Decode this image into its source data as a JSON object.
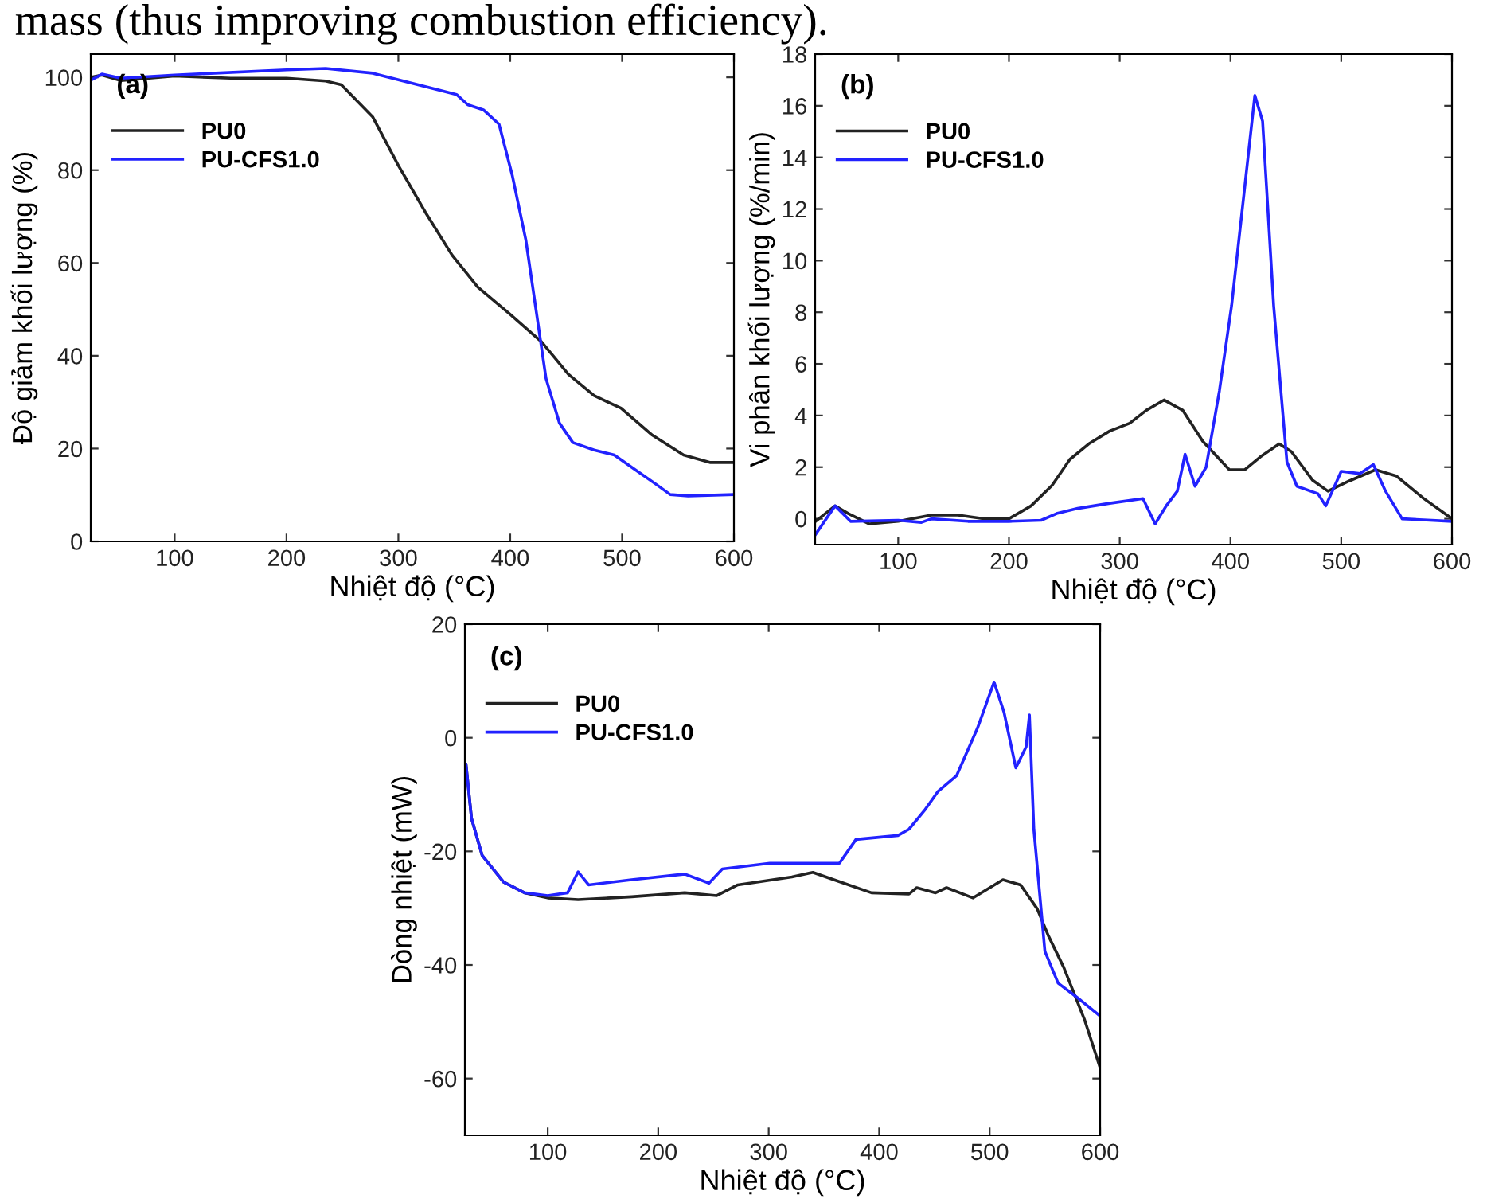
{
  "chart_data": [
    {
      "type": "line",
      "xlabel": "Nhiệt độ (°C)",
      "ylabel": "Độ giảm khối lượng (%)",
      "xlim": [
        25,
        600
      ],
      "ylim": [
        0,
        105
      ],
      "xticks": [
        100,
        200,
        300,
        400,
        500,
        600
      ],
      "yticks": [
        0,
        20,
        40,
        60,
        80,
        100
      ],
      "legend": "top left",
      "grid": false,
      "annotations": [
        "(a)",
        "mass (thus improving combustion efficiency)."
      ],
      "series": [
        {
          "name": "PU0",
          "color": "#222222",
          "x": [
            25,
            35,
            52,
            100,
            150,
            200,
            235,
            249,
            277,
            300,
            324,
            348,
            371,
            400,
            428,
            452,
            475,
            499,
            527,
            555,
            579,
            600
          ],
          "values": [
            100,
            100.5,
            99.3,
            100.3,
            99.8,
            99.8,
            99.2,
            98.4,
            91.5,
            81,
            71,
            61.7,
            54.8,
            48.9,
            43,
            36,
            31.4,
            28.7,
            22.9,
            18.6,
            17,
            17
          ]
        },
        {
          "name": "PU-CFS1.0",
          "color": "#2222ff",
          "x": [
            26,
            35,
            52,
            100,
            200,
            235,
            277,
            329,
            352,
            362,
            376,
            390,
            402,
            414,
            423,
            432,
            444,
            456,
            475,
            493,
            512,
            531,
            543,
            559,
            600
          ],
          "values": [
            99.5,
            100.7,
            99.8,
            100.5,
            101.6,
            101.9,
            100.9,
            97.7,
            96.3,
            94.1,
            93,
            89.9,
            78.7,
            64.9,
            50,
            35.1,
            25.5,
            21.3,
            19.7,
            18.6,
            15.4,
            12.2,
            10.1,
            9.8,
            10.1
          ]
        }
      ]
    },
    {
      "type": "line",
      "xlabel": "Nhiệt độ (°C)",
      "ylabel": "Vi phân khối lượng (%/min)",
      "xlim": [
        25,
        600
      ],
      "ylim": [
        -1,
        18
      ],
      "xticks": [
        100,
        200,
        300,
        400,
        500,
        600
      ],
      "yticks": [
        0,
        2,
        4,
        6,
        8,
        10,
        12,
        14,
        16,
        18
      ],
      "legend": "top left",
      "grid": false,
      "annotations": [
        "(b)"
      ],
      "series": [
        {
          "name": "PU0",
          "color": "#222222",
          "x": [
            25.5,
            43,
            55,
            74,
            100,
            130,
            154,
            177,
            200,
            220,
            239,
            255,
            272,
            291,
            309,
            324,
            340,
            357,
            375,
            399,
            413,
            427,
            444,
            455,
            474,
            488,
            507,
            531,
            550,
            574,
            600
          ],
          "values": [
            -0.1,
            0.5,
            0.2,
            -0.2,
            -0.1,
            0.14,
            0.14,
            0,
            0,
            0.5,
            1.3,
            2.3,
            2.9,
            3.4,
            3.7,
            4.2,
            4.6,
            4.2,
            3.0,
            1.9,
            1.9,
            2.4,
            2.9,
            2.6,
            1.5,
            1.07,
            1.46,
            1.9,
            1.65,
            0.8,
            0
          ]
        },
        {
          "name": "PU-CFS1.0",
          "color": "#2222ff",
          "x": [
            25.5,
            43,
            57,
            100,
            121,
            130,
            163,
            200,
            229,
            243,
            262,
            291,
            321,
            332,
            342,
            352,
            359,
            368,
            378,
            390,
            401,
            413,
            422,
            429,
            439,
            451,
            460,
            479,
            486,
            500,
            517,
            529,
            540,
            555,
            600
          ],
          "values": [
            -0.6,
            0.5,
            -0.1,
            -0.06,
            -0.14,
            0,
            -0.1,
            -0.1,
            -0.06,
            0.2,
            0.4,
            0.6,
            0.78,
            -0.2,
            0.5,
            1.07,
            2.5,
            1.26,
            2.0,
            4.95,
            8.25,
            12.9,
            16.4,
            15.4,
            8.25,
            2.2,
            1.26,
            0.97,
            0.5,
            1.84,
            1.75,
            2.1,
            1.07,
            0,
            -0.1
          ]
        }
      ]
    },
    {
      "type": "line",
      "xlabel": "Nhiệt độ (°C)",
      "ylabel": "Dòng nhiệt (mW)",
      "xlim": [
        25,
        600
      ],
      "ylim": [
        -70,
        20
      ],
      "xticks": [
        100,
        200,
        300,
        400,
        500,
        600
      ],
      "yticks": [
        {
          "value": -60,
          "label": "-60"
        },
        {
          "value": -40,
          "label": "-40"
        },
        {
          "value": -20,
          "label": "-20"
        },
        0,
        20
      ],
      "legend": "top left",
      "grid": false,
      "annotations": [
        "(c)"
      ],
      "series": [
        {
          "name": "PU0",
          "color": "#222222",
          "x": [
            26,
            31,
            40.6,
            60,
            79,
            100,
            127.5,
            176,
            224,
            253,
            272,
            321,
            340,
            359,
            393,
            427,
            434,
            451,
            461,
            485,
            512,
            528,
            543,
            553,
            567,
            586,
            600
          ],
          "values": [
            -4.7,
            -14.2,
            -20.7,
            -25.4,
            -27.3,
            -28.2,
            -28.5,
            -28,
            -27.3,
            -27.8,
            -25.9,
            -24.5,
            -23.7,
            -25,
            -27.3,
            -27.5,
            -26.4,
            -27.3,
            -26.4,
            -28.2,
            -25,
            -25.9,
            -30.1,
            -34.8,
            -40.4,
            -49.7,
            -58.1
          ]
        },
        {
          "name": "PU-CFS1.0",
          "color": "#2222ff",
          "x": [
            26,
            31,
            40.6,
            60,
            79,
            100,
            118,
            127.5,
            137,
            176,
            224,
            246,
            258,
            301,
            364,
            379,
            417,
            427,
            441,
            453,
            470,
            489,
            504,
            513,
            523.7,
            533,
            536,
            540,
            550,
            562,
            581,
            600
          ],
          "values": [
            -4.7,
            -14.2,
            -20.7,
            -25.4,
            -27.3,
            -27.8,
            -27.3,
            -23.6,
            -25.9,
            -25,
            -24,
            -25.6,
            -23.1,
            -22.1,
            -22.1,
            -17.9,
            -17.2,
            -16.1,
            -12.8,
            -9.5,
            -6.7,
            1.7,
            9.8,
            4.5,
            -5.3,
            -1.6,
            4.0,
            -16.1,
            -37.6,
            -43.2,
            -46,
            -49
          ]
        }
      ]
    }
  ]
}
